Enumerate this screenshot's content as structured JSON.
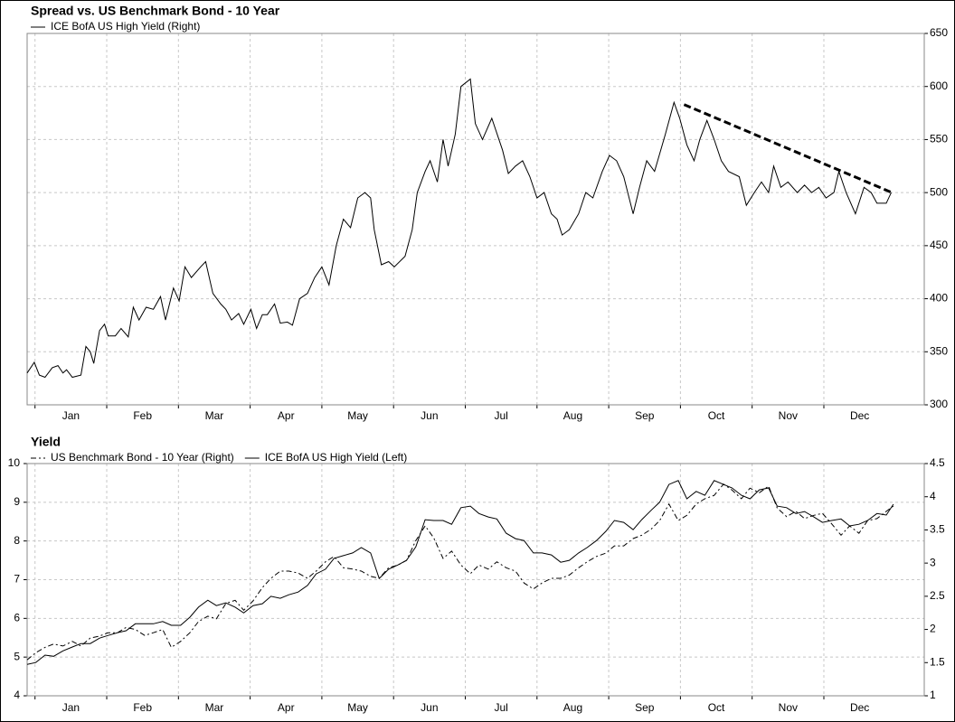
{
  "chart_data": [
    {
      "type": "line",
      "title": "Spread vs. US Benchmark Bond - 10 Year",
      "yaxis_side": "right",
      "x": [
        -0.11,
        -0.01,
        0.06,
        0.14,
        0.24,
        0.32,
        0.39,
        0.44,
        0.52,
        0.64,
        0.71,
        0.77,
        0.82,
        0.9,
        0.97,
        1.02,
        1.12,
        1.2,
        1.3,
        1.37,
        1.45,
        1.55,
        1.65,
        1.75,
        1.82,
        1.93,
        2.01,
        2.09,
        2.18,
        2.31,
        2.38,
        2.48,
        2.59,
        2.66,
        2.74,
        2.84,
        2.91,
        3.01,
        3.09,
        3.17,
        3.24,
        3.34,
        3.42,
        3.52,
        3.59,
        3.69,
        3.8,
        3.9,
        4.0,
        4.1,
        4.2,
        4.3,
        4.4,
        4.5,
        4.6,
        4.68,
        4.73,
        4.83,
        4.93,
        5.01,
        5.16,
        5.26,
        5.33,
        5.44,
        5.51,
        5.61,
        5.69,
        5.76,
        5.86,
        5.94,
        6.07,
        6.14,
        6.24,
        6.37,
        6.52,
        6.6,
        6.7,
        6.8,
        6.9,
        7.0,
        7.1,
        7.2,
        7.28,
        7.35,
        7.45,
        7.58,
        7.68,
        7.78,
        7.91,
        8.01,
        8.11,
        8.21,
        8.34,
        8.43,
        8.53,
        8.64,
        8.79,
        8.91,
        8.99,
        9.09,
        9.19,
        9.27,
        9.37,
        9.47,
        9.57,
        9.67,
        9.82,
        9.92,
        10.03,
        10.13,
        10.23,
        10.3,
        10.4,
        10.5,
        10.63,
        10.73,
        10.83,
        10.93,
        11.03,
        11.14,
        11.21,
        11.31,
        11.44,
        11.56,
        11.66,
        11.74,
        11.87,
        11.94
      ],
      "series": [
        {
          "name": "ICE BofA US High Yield (Right)",
          "color": "#000000",
          "dash": "solid",
          "values": [
            330,
            340,
            328,
            326,
            335,
            337,
            330,
            333,
            326,
            328,
            355,
            350,
            339,
            370,
            376,
            365,
            365,
            372,
            364,
            392,
            380,
            392,
            390,
            402,
            380,
            410,
            398,
            430,
            420,
            430,
            435,
            405,
            395,
            390,
            380,
            386,
            376,
            390,
            372,
            385,
            385,
            395,
            377,
            378,
            375,
            400,
            405,
            420,
            430,
            413,
            450,
            475,
            467,
            495,
            500,
            495,
            465,
            432,
            435,
            430,
            440,
            465,
            500,
            520,
            530,
            510,
            550,
            525,
            555,
            600,
            607,
            565,
            550,
            570,
            540,
            518,
            525,
            530,
            515,
            495,
            500,
            480,
            475,
            460,
            465,
            480,
            500,
            495,
            520,
            535,
            530,
            515,
            480,
            505,
            530,
            520,
            555,
            585,
            570,
            545,
            530,
            550,
            568,
            550,
            530,
            520,
            515,
            488,
            500,
            510,
            500,
            525,
            505,
            510,
            500,
            507,
            500,
            505,
            495,
            500,
            520,
            500,
            480,
            505,
            500,
            490,
            490,
            500
          ]
        }
      ],
      "trendline": {
        "x": [
          9.05,
          11.95
        ],
        "values": [
          583,
          500
        ],
        "color": "#000000",
        "dash": "dashed"
      },
      "xlim": [
        -0.11,
        12.4
      ],
      "xticks": [
        {
          "value": 0,
          "label": "Jan"
        },
        {
          "value": 1,
          "label": "Feb"
        },
        {
          "value": 2,
          "label": "Mar"
        },
        {
          "value": 3,
          "label": "Apr"
        },
        {
          "value": 4,
          "label": "May"
        },
        {
          "value": 5,
          "label": "Jun"
        },
        {
          "value": 6,
          "label": "Jul"
        },
        {
          "value": 7,
          "label": "Aug"
        },
        {
          "value": 8,
          "label": "Sep"
        },
        {
          "value": 9,
          "label": "Oct"
        },
        {
          "value": 10,
          "label": "Nov"
        },
        {
          "value": 11,
          "label": "Dec"
        }
      ],
      "ylim": [
        300,
        650
      ],
      "yticks": [
        300,
        350,
        400,
        450,
        500,
        550,
        600,
        650
      ],
      "grid": true
    },
    {
      "type": "line",
      "title": "Yield",
      "x": [
        -0.11,
        0.01,
        0.14,
        0.26,
        0.39,
        0.52,
        0.64,
        0.77,
        0.9,
        1.02,
        1.15,
        1.27,
        1.4,
        1.53,
        1.65,
        1.78,
        1.9,
        2.03,
        2.16,
        2.28,
        2.41,
        2.53,
        2.66,
        2.79,
        2.91,
        3.04,
        3.17,
        3.29,
        3.42,
        3.54,
        3.67,
        3.8,
        3.92,
        4.05,
        4.17,
        4.3,
        4.43,
        4.55,
        4.68,
        4.8,
        4.93,
        5.06,
        5.18,
        5.31,
        5.44,
        5.56,
        5.69,
        5.81,
        5.94,
        6.07,
        6.19,
        6.32,
        6.44,
        6.57,
        6.7,
        6.82,
        6.95,
        7.07,
        7.2,
        7.33,
        7.45,
        7.58,
        7.7,
        7.83,
        7.96,
        8.08,
        8.21,
        8.34,
        8.46,
        8.59,
        8.71,
        8.84,
        8.97,
        9.09,
        9.22,
        9.34,
        9.47,
        9.6,
        9.72,
        9.85,
        9.97,
        10.1,
        10.23,
        10.35,
        10.48,
        10.61,
        10.73,
        10.86,
        10.98,
        11.11,
        11.24,
        11.36,
        11.49,
        11.61,
        11.74,
        11.87,
        11.97
      ],
      "series": [
        {
          "name": "US Benchmark Bond - 10 Year (Right)",
          "color": "#000000",
          "dash": "dashdot",
          "axis": "y2",
          "values": [
            1.54,
            1.65,
            1.73,
            1.78,
            1.75,
            1.82,
            1.75,
            1.87,
            1.9,
            1.95,
            1.95,
            2.03,
            2.0,
            1.91,
            1.95,
            2.0,
            1.73,
            1.82,
            1.95,
            2.12,
            2.2,
            2.16,
            2.39,
            2.44,
            2.29,
            2.43,
            2.63,
            2.77,
            2.88,
            2.88,
            2.85,
            2.77,
            2.88,
            3.02,
            3.1,
            2.93,
            2.91,
            2.88,
            2.8,
            2.77,
            2.93,
            2.97,
            3.04,
            3.34,
            3.56,
            3.38,
            3.07,
            3.18,
            2.97,
            2.84,
            2.97,
            2.91,
            3.02,
            2.93,
            2.88,
            2.7,
            2.61,
            2.7,
            2.77,
            2.77,
            2.82,
            2.93,
            3.02,
            3.1,
            3.15,
            3.26,
            3.26,
            3.37,
            3.42,
            3.51,
            3.64,
            3.89,
            3.64,
            3.72,
            3.89,
            3.97,
            4.02,
            4.19,
            4.1,
            3.97,
            4.13,
            4.06,
            4.16,
            3.83,
            3.7,
            3.78,
            3.67,
            3.72,
            3.75,
            3.59,
            3.42,
            3.56,
            3.45,
            3.64,
            3.67,
            3.78,
            3.86
          ]
        },
        {
          "name": "ICE BofA US High Yield (Left)",
          "color": "#000000",
          "dash": "solid",
          "values": [
            4.81,
            4.86,
            5.05,
            5.02,
            5.16,
            5.26,
            5.35,
            5.35,
            5.49,
            5.56,
            5.63,
            5.68,
            5.86,
            5.86,
            5.86,
            5.92,
            5.82,
            5.82,
            6.03,
            6.29,
            6.47,
            6.33,
            6.4,
            6.29,
            6.14,
            6.33,
            6.38,
            6.57,
            6.52,
            6.61,
            6.68,
            6.85,
            7.15,
            7.27,
            7.55,
            7.62,
            7.69,
            7.83,
            7.69,
            7.03,
            7.27,
            7.38,
            7.5,
            7.85,
            8.55,
            8.53,
            8.53,
            8.43,
            8.86,
            8.9,
            8.71,
            8.62,
            8.57,
            8.2,
            8.06,
            8.01,
            7.69,
            7.69,
            7.64,
            7.45,
            7.5,
            7.69,
            7.83,
            8.01,
            8.25,
            8.53,
            8.48,
            8.29,
            8.55,
            8.79,
            9.0,
            9.46,
            9.56,
            9.09,
            9.28,
            9.18,
            9.56,
            9.46,
            9.37,
            9.18,
            9.09,
            9.32,
            9.37,
            8.9,
            8.86,
            8.71,
            8.76,
            8.62,
            8.48,
            8.53,
            8.57,
            8.39,
            8.43,
            8.53,
            8.71,
            8.67,
            8.95
          ]
        }
      ],
      "xlim": [
        -0.11,
        12.4
      ],
      "xticks": [
        {
          "value": 0,
          "label": "Jan"
        },
        {
          "value": 1,
          "label": "Feb"
        },
        {
          "value": 2,
          "label": "Mar"
        },
        {
          "value": 3,
          "label": "Apr"
        },
        {
          "value": 4,
          "label": "May"
        },
        {
          "value": 5,
          "label": "Jun"
        },
        {
          "value": 6,
          "label": "Jul"
        },
        {
          "value": 7,
          "label": "Aug"
        },
        {
          "value": 8,
          "label": "Sep"
        },
        {
          "value": 9,
          "label": "Oct"
        },
        {
          "value": 10,
          "label": "Nov"
        },
        {
          "value": 11,
          "label": "Dec"
        }
      ],
      "ylim": [
        4,
        10
      ],
      "yticks": [
        4,
        5,
        6,
        7,
        8,
        9,
        10
      ],
      "y2lim": [
        1,
        4.5
      ],
      "y2ticks": [
        1,
        1.5,
        2,
        2.5,
        3,
        3.5,
        4,
        4.5
      ],
      "grid": true
    }
  ]
}
